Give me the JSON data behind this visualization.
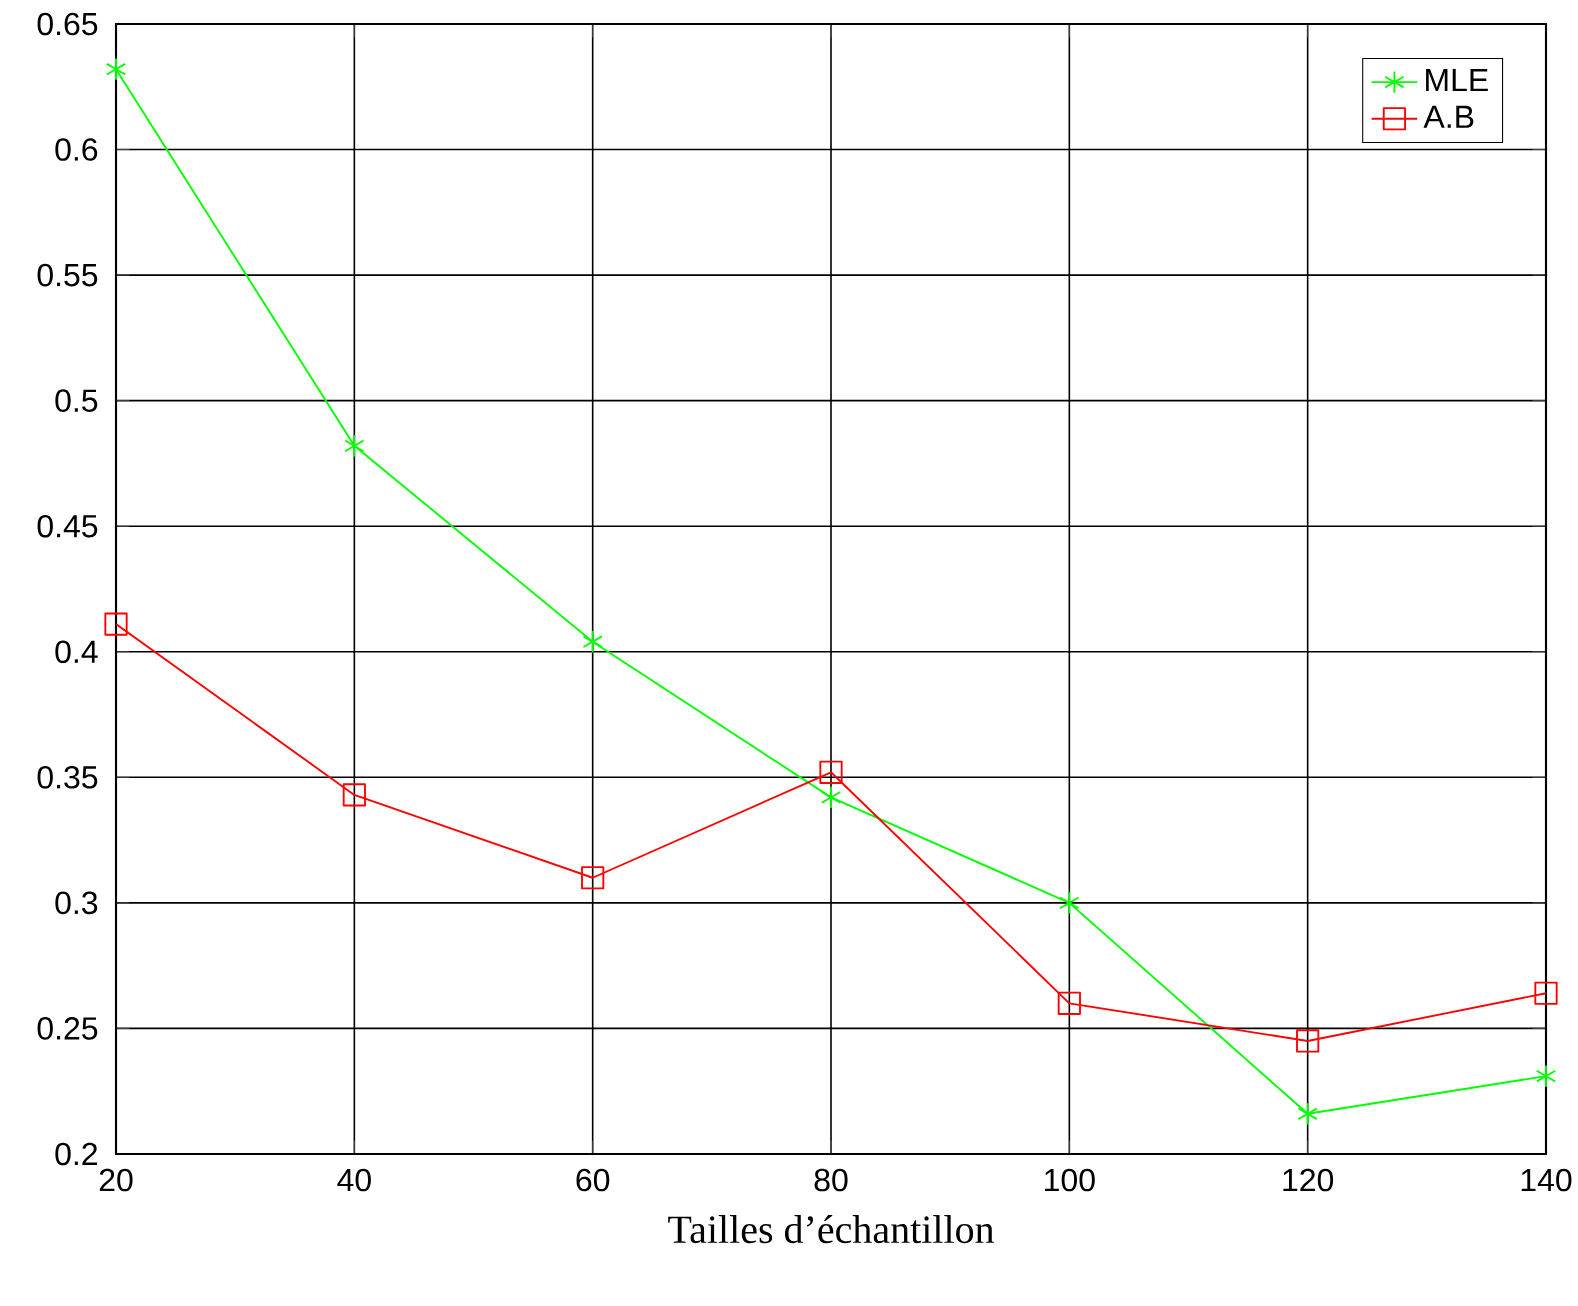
{
  "chart_data": {
    "type": "line",
    "xlabel": "Tailles d’échantillon",
    "x": [
      20,
      40,
      60,
      80,
      100,
      120,
      140
    ],
    "series": [
      {
        "name": "MLE",
        "color": "#00ff00",
        "marker": "cross",
        "values": [
          0.632,
          0.482,
          0.404,
          0.342,
          0.3,
          0.216,
          0.231
        ]
      },
      {
        "name": "A.B",
        "color": "#ff0000",
        "marker": "square",
        "values": [
          0.411,
          0.343,
          0.31,
          0.352,
          0.26,
          0.245,
          0.264
        ]
      }
    ],
    "xlim": [
      20,
      140
    ],
    "ylim": [
      0.2,
      0.65
    ],
    "xticks": [
      20,
      40,
      60,
      80,
      100,
      120,
      140
    ],
    "yticks": [
      0.2,
      0.25,
      0.3,
      0.35,
      0.4,
      0.45,
      0.5,
      0.55,
      0.6,
      0.65
    ],
    "grid": true,
    "legend": "top right",
    "line_style": "solid"
  }
}
